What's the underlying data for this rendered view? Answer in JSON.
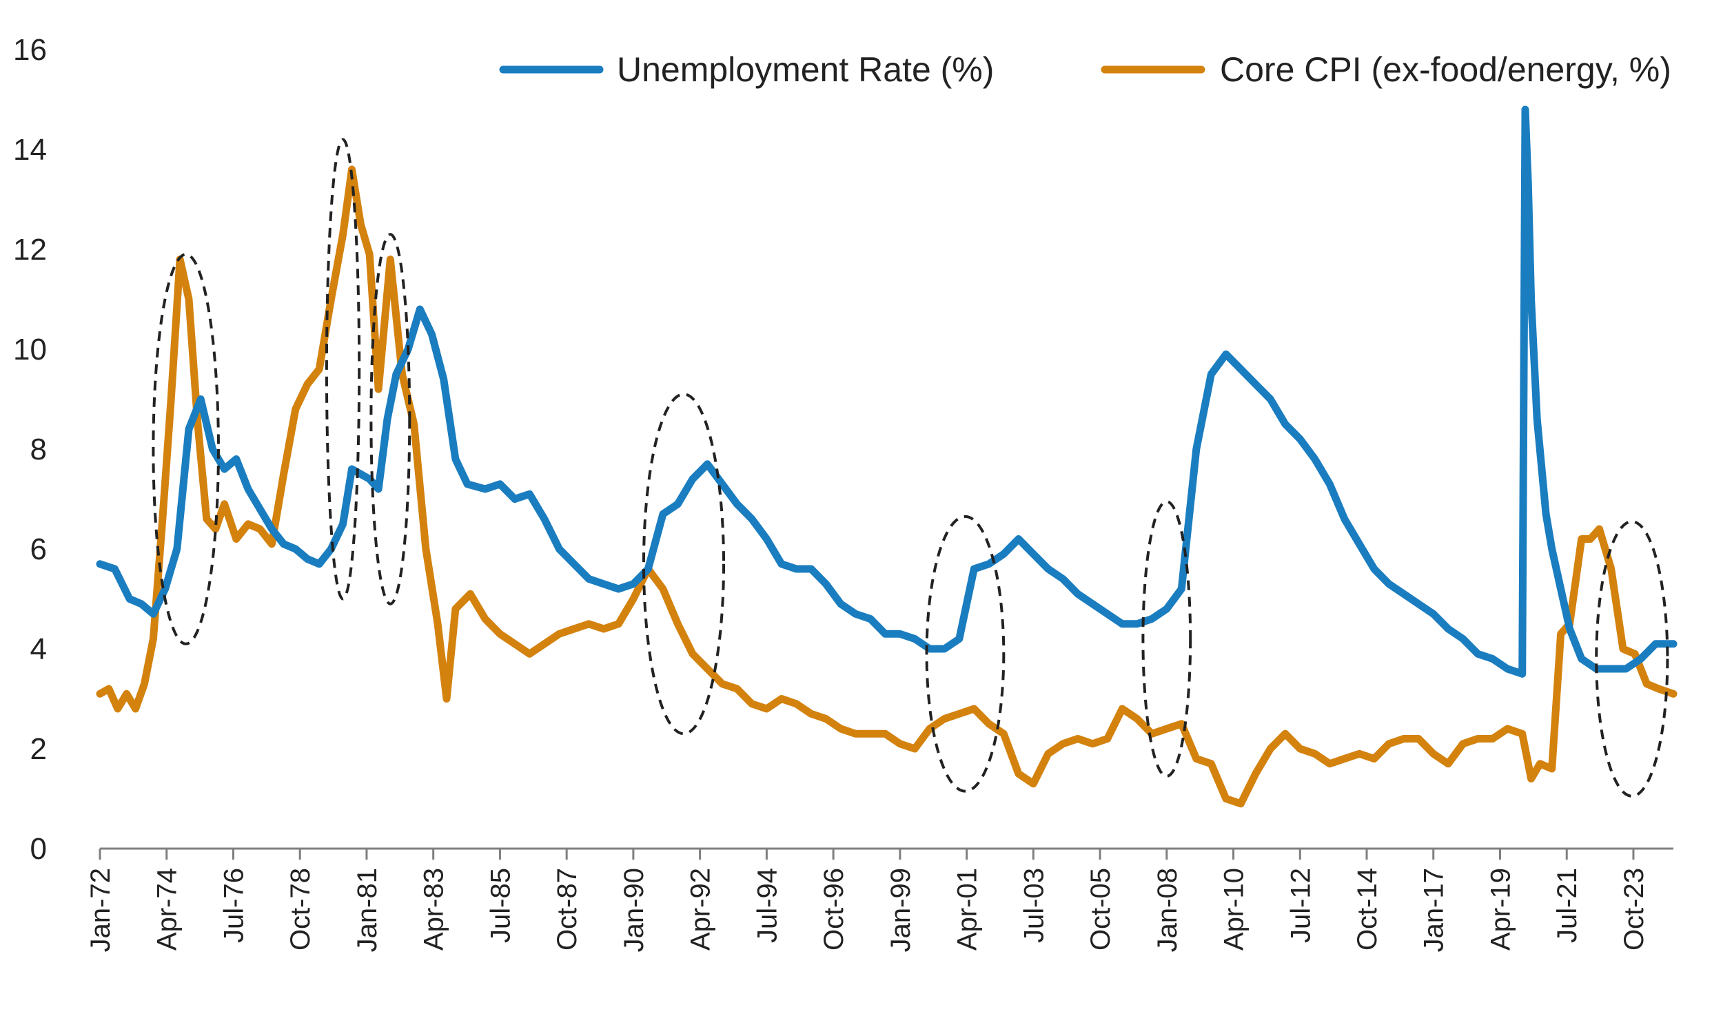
{
  "chart_data": {
    "type": "line",
    "title": "",
    "xlabel": "",
    "ylabel": "",
    "ylim": [
      0,
      16
    ],
    "yticks": [
      0,
      2,
      4,
      6,
      8,
      10,
      12,
      14,
      16
    ],
    "xlim": [
      1972.0,
      2025.1
    ],
    "xtick_labels": [
      "Jan-72",
      "Apr-74",
      "Jul-76",
      "Oct-78",
      "Jan-81",
      "Apr-83",
      "Jul-85",
      "Oct-87",
      "Jan-90",
      "Apr-92",
      "Jul-94",
      "Oct-96",
      "Jan-99",
      "Apr-01",
      "Jul-03",
      "Oct-05",
      "Jan-08",
      "Apr-10",
      "Jul-12",
      "Oct-14",
      "Jan-17",
      "Apr-19",
      "Jul-21",
      "Oct-23"
    ],
    "xtick_positions": [
      1972.0,
      1974.25,
      1976.5,
      1978.75,
      1981.0,
      1983.25,
      1985.5,
      1987.75,
      1990.0,
      1992.25,
      1994.5,
      1996.75,
      1999.0,
      2001.25,
      2003.5,
      2005.75,
      2008.0,
      2010.25,
      2012.5,
      2014.75,
      2017.0,
      2019.25,
      2021.5,
      2023.75
    ],
    "legend": {
      "placement": "top-right"
    },
    "series": [
      {
        "name": "Unemployment Rate (%)",
        "color": "#1a7dc0",
        "x": [
          1972.0,
          1972.5,
          1973.0,
          1973.4,
          1973.8,
          1974.2,
          1974.6,
          1975.0,
          1975.4,
          1975.8,
          1976.2,
          1976.6,
          1977.0,
          1977.4,
          1977.8,
          1978.2,
          1978.6,
          1979.0,
          1979.4,
          1979.8,
          1980.2,
          1980.5,
          1980.8,
          1981.1,
          1981.4,
          1981.7,
          1982.0,
          1982.4,
          1982.8,
          1983.2,
          1983.6,
          1984.0,
          1984.4,
          1985.0,
          1985.5,
          1986.0,
          1986.5,
          1987.0,
          1987.5,
          1988.0,
          1988.5,
          1989.0,
          1989.5,
          1990.0,
          1990.5,
          1991.0,
          1991.5,
          1992.0,
          1992.5,
          1993.0,
          1993.5,
          1994.0,
          1994.5,
          1995.0,
          1995.5,
          1996.0,
          1996.5,
          1997.0,
          1997.5,
          1998.0,
          1998.5,
          1999.0,
          1999.5,
          2000.0,
          2000.5,
          2001.0,
          2001.5,
          2002.0,
          2002.5,
          2003.0,
          2003.5,
          2004.0,
          2004.5,
          2005.0,
          2005.5,
          2006.0,
          2006.5,
          2007.0,
          2007.5,
          2008.0,
          2008.5,
          2009.0,
          2009.5,
          2010.0,
          2010.5,
          2011.0,
          2011.5,
          2012.0,
          2012.5,
          2013.0,
          2013.5,
          2014.0,
          2014.5,
          2015.0,
          2015.5,
          2016.0,
          2016.5,
          2017.0,
          2017.5,
          2018.0,
          2018.5,
          2019.0,
          2019.5,
          2020.0,
          2020.1,
          2020.2,
          2020.3,
          2020.5,
          2020.8,
          2021.0,
          2021.3,
          2021.6,
          2022.0,
          2022.5,
          2023.0,
          2023.5,
          2024.0,
          2024.5,
          2025.1
        ],
        "y": [
          5.7,
          5.6,
          5.0,
          4.9,
          4.7,
          5.2,
          6.0,
          8.4,
          9.0,
          8.0,
          7.6,
          7.8,
          7.2,
          6.8,
          6.4,
          6.1,
          6.0,
          5.8,
          5.7,
          6.0,
          6.5,
          7.6,
          7.5,
          7.4,
          7.2,
          8.6,
          9.5,
          10.0,
          10.8,
          10.3,
          9.4,
          7.8,
          7.3,
          7.2,
          7.3,
          7.0,
          7.1,
          6.6,
          6.0,
          5.7,
          5.4,
          5.3,
          5.2,
          5.3,
          5.6,
          6.7,
          6.9,
          7.4,
          7.7,
          7.3,
          6.9,
          6.6,
          6.2,
          5.7,
          5.6,
          5.6,
          5.3,
          4.9,
          4.7,
          4.6,
          4.3,
          4.3,
          4.2,
          4.0,
          4.0,
          4.2,
          5.6,
          5.7,
          5.9,
          6.2,
          5.9,
          5.6,
          5.4,
          5.1,
          4.9,
          4.7,
          4.5,
          4.5,
          4.6,
          4.8,
          5.2,
          8.0,
          9.5,
          9.9,
          9.6,
          9.3,
          9.0,
          8.5,
          8.2,
          7.8,
          7.3,
          6.6,
          6.1,
          5.6,
          5.3,
          5.1,
          4.9,
          4.7,
          4.4,
          4.2,
          3.9,
          3.8,
          3.6,
          3.5,
          14.8,
          13.3,
          11.0,
          8.6,
          6.7,
          6.0,
          5.2,
          4.4,
          3.8,
          3.6,
          3.6,
          3.6,
          3.8,
          4.1,
          4.1
        ]
      },
      {
        "name": "Core CPI (ex-food/energy, %)",
        "color": "#d4820e",
        "x": [
          1972.0,
          1972.3,
          1972.6,
          1972.9,
          1973.2,
          1973.5,
          1973.8,
          1974.1,
          1974.4,
          1974.7,
          1975.0,
          1975.3,
          1975.6,
          1975.9,
          1976.2,
          1976.6,
          1977.0,
          1977.4,
          1977.8,
          1978.2,
          1978.6,
          1979.0,
          1979.4,
          1979.8,
          1980.2,
          1980.5,
          1980.8,
          1981.1,
          1981.4,
          1981.8,
          1982.2,
          1982.6,
          1983.0,
          1983.4,
          1983.7,
          1984.0,
          1984.5,
          1985.0,
          1985.5,
          1986.0,
          1986.5,
          1987.0,
          1987.5,
          1988.0,
          1988.5,
          1989.0,
          1989.5,
          1990.0,
          1990.5,
          1991.0,
          1991.5,
          1992.0,
          1992.5,
          1993.0,
          1993.5,
          1994.0,
          1994.5,
          1995.0,
          1995.5,
          1996.0,
          1996.5,
          1997.0,
          1997.5,
          1998.0,
          1998.5,
          1999.0,
          1999.5,
          2000.0,
          2000.5,
          2001.0,
          2001.5,
          2002.0,
          2002.5,
          2003.0,
          2003.5,
          2004.0,
          2004.5,
          2005.0,
          2005.5,
          2006.0,
          2006.5,
          2007.0,
          2007.5,
          2008.0,
          2008.5,
          2009.0,
          2009.5,
          2010.0,
          2010.5,
          2011.0,
          2011.5,
          2012.0,
          2012.5,
          2013.0,
          2013.5,
          2014.0,
          2014.5,
          2015.0,
          2015.5,
          2016.0,
          2016.5,
          2017.0,
          2017.5,
          2018.0,
          2018.5,
          2019.0,
          2019.5,
          2020.0,
          2020.3,
          2020.6,
          2021.0,
          2021.3,
          2021.6,
          2022.0,
          2022.3,
          2022.6,
          2023.0,
          2023.4,
          2023.8,
          2024.2,
          2024.6,
          2025.1
        ],
        "y": [
          3.1,
          3.2,
          2.8,
          3.1,
          2.8,
          3.3,
          4.2,
          6.5,
          9.0,
          11.8,
          11.0,
          8.5,
          6.6,
          6.4,
          6.9,
          6.2,
          6.5,
          6.4,
          6.1,
          7.5,
          8.8,
          9.3,
          9.6,
          11.0,
          12.3,
          13.6,
          12.5,
          11.9,
          9.2,
          11.8,
          9.5,
          8.5,
          6.0,
          4.5,
          3.0,
          4.8,
          5.1,
          4.6,
          4.3,
          4.1,
          3.9,
          4.1,
          4.3,
          4.4,
          4.5,
          4.4,
          4.5,
          5.0,
          5.6,
          5.2,
          4.5,
          3.9,
          3.6,
          3.3,
          3.2,
          2.9,
          2.8,
          3.0,
          2.9,
          2.7,
          2.6,
          2.4,
          2.3,
          2.3,
          2.3,
          2.1,
          2.0,
          2.4,
          2.6,
          2.7,
          2.8,
          2.5,
          2.3,
          1.5,
          1.3,
          1.9,
          2.1,
          2.2,
          2.1,
          2.2,
          2.8,
          2.6,
          2.3,
          2.4,
          2.5,
          1.8,
          1.7,
          1.0,
          0.9,
          1.5,
          2.0,
          2.3,
          2.0,
          1.9,
          1.7,
          1.8,
          1.9,
          1.8,
          2.1,
          2.2,
          2.2,
          1.9,
          1.7,
          2.1,
          2.2,
          2.2,
          2.4,
          2.3,
          1.4,
          1.7,
          1.6,
          4.3,
          4.5,
          6.2,
          6.2,
          6.4,
          5.6,
          4.0,
          3.9,
          3.3,
          3.2,
          3.1
        ]
      }
    ],
    "annotations": [
      {
        "type": "dashed-ellipse",
        "center_x": 1974.9,
        "center_y": 8.0,
        "x_half_width": 1.1,
        "y_half_height": 3.9
      },
      {
        "type": "dashed-ellipse",
        "center_x": 1980.2,
        "center_y": 9.6,
        "x_half_width": 0.55,
        "y_half_height": 4.6
      },
      {
        "type": "dashed-ellipse",
        "center_x": 1981.8,
        "center_y": 8.6,
        "x_half_width": 0.65,
        "y_half_height": 3.7
      },
      {
        "type": "dashed-ellipse",
        "center_x": 1991.7,
        "center_y": 5.7,
        "x_half_width": 1.35,
        "y_half_height": 3.4
      },
      {
        "type": "dashed-ellipse",
        "center_x": 2001.2,
        "center_y": 3.9,
        "x_half_width": 1.3,
        "y_half_height": 2.75
      },
      {
        "type": "dashed-ellipse",
        "center_x": 2008.0,
        "center_y": 4.2,
        "x_half_width": 0.8,
        "y_half_height": 2.75
      },
      {
        "type": "dashed-ellipse",
        "center_x": 2023.7,
        "center_y": 3.8,
        "x_half_width": 1.2,
        "y_half_height": 2.75
      }
    ]
  }
}
